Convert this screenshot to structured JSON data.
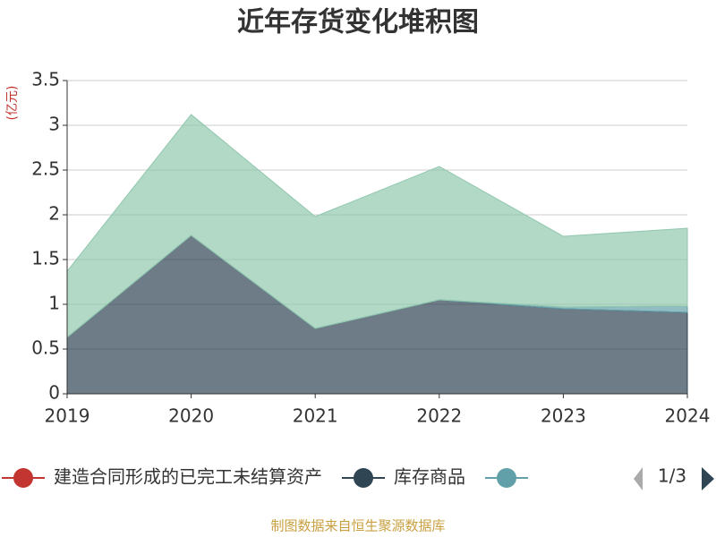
{
  "chart_data": {
    "type": "stacked_area",
    "title": "近年存货变化堆积图",
    "y_unit": "(亿元)",
    "categories": [
      "2019",
      "2020",
      "2021",
      "2022",
      "2023",
      "2024"
    ],
    "series": [
      {
        "name": "建造合同形成的已完工未结算资产",
        "color": "#c23531",
        "values": [
          0,
          0,
          0,
          0,
          0,
          0
        ]
      },
      {
        "name": "库存商品",
        "color": "#2f4554",
        "values": [
          0.63,
          1.77,
          0.73,
          1.05,
          0.95,
          0.91
        ]
      },
      {
        "color": "#61a0a8",
        "values": [
          0,
          0,
          0,
          0,
          0.02,
          0.07
        ]
      },
      {
        "color": "#91c7ae",
        "values": [
          0.74,
          1.35,
          1.25,
          1.49,
          0.79,
          0.87
        ]
      }
    ],
    "ylim": [
      0,
      3.5
    ],
    "yticks": [
      0,
      0.5,
      1,
      1.5,
      2,
      2.5,
      3,
      3.5
    ],
    "grid": true,
    "legend_page": "1/3",
    "source": "制图数据来自恒生聚源数据库"
  }
}
